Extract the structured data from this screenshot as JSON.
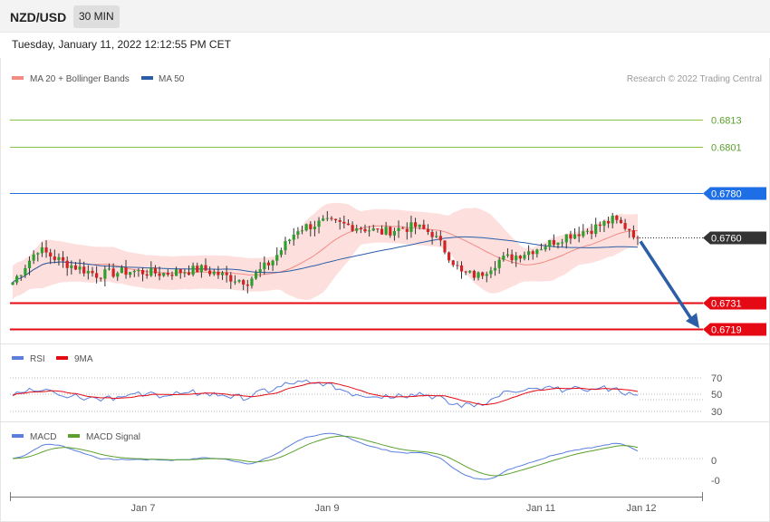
{
  "header": {
    "symbol": "NZD/USD",
    "timeframe": "30 MIN",
    "timestamp": "Tuesday, January 11, 2022 12:12:55 PM CET"
  },
  "main_legend": {
    "items": [
      {
        "label": "MA 20 + Bollinger Bands",
        "color": "#f28b82"
      },
      {
        "label": "MA 50",
        "color": "#2c5ea8"
      }
    ],
    "credit": "Research © 2022 Trading Central"
  },
  "chart_data": [
    {
      "type": "candlestick",
      "panel": "price",
      "ylim": [
        0.6713,
        0.6826
      ],
      "levels": [
        {
          "value": "0.6813",
          "role": "resistance",
          "color": "#8bc34a"
        },
        {
          "value": "0.6801",
          "role": "resistance",
          "color": "#8bc34a"
        },
        {
          "value": "0.6780",
          "role": "pivot",
          "color": "#1e6fe6"
        },
        {
          "value": "0.6760",
          "role": "last-price",
          "color": "#333333"
        },
        {
          "value": "0.6731",
          "role": "support",
          "color": "#e50914"
        },
        {
          "value": "0.6719",
          "role": "support",
          "color": "#e50914"
        }
      ],
      "last_price": 0.676,
      "forecast_target": 0.6719,
      "colors": {
        "up": "#2e9e2e",
        "down": "#d32222",
        "band_fill": "#fde0de",
        "ma20": "#f28b82",
        "ma50": "#2c5ea8",
        "arrow": "#2c5ea8"
      }
    },
    {
      "type": "line",
      "panel": "rsi",
      "series": [
        {
          "name": "RSI",
          "color": "#5b7fde"
        },
        {
          "name": "9MA",
          "color": "#e50914"
        }
      ],
      "ticks": [
        "70",
        "50",
        "30"
      ],
      "ylim": [
        20,
        80
      ]
    },
    {
      "type": "line",
      "panel": "macd",
      "series": [
        {
          "name": "MACD",
          "color": "#5b7fde"
        },
        {
          "name": "MACD Signal",
          "color": "#5aa02c"
        }
      ],
      "ticks": [
        "0",
        "-0"
      ]
    }
  ],
  "x_axis": {
    "labels": [
      "Jan 7",
      "Jan 9",
      "Jan 11",
      "Jan 12"
    ]
  }
}
